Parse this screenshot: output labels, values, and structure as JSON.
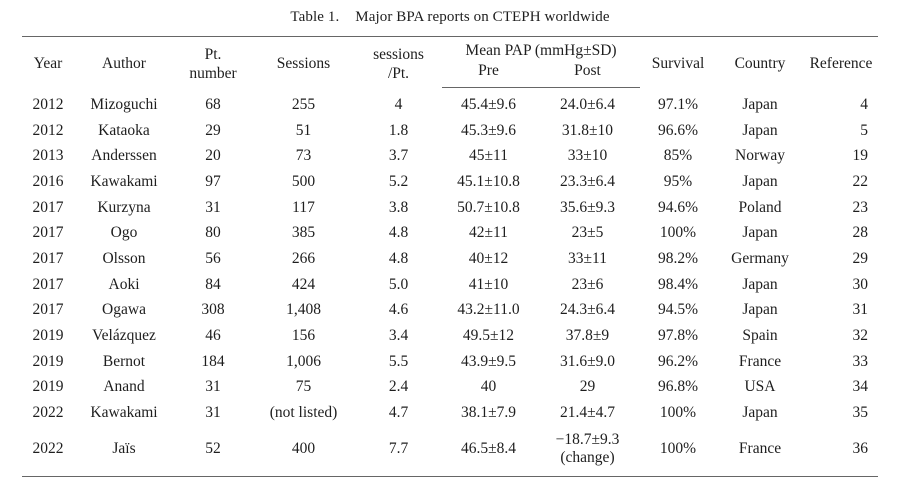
{
  "caption": {
    "label": "Table 1.",
    "title": "Major BPA reports on CTEPH worldwide"
  },
  "headers": {
    "year": "Year",
    "author": "Author",
    "pt_line1": "Pt.",
    "pt_line2": "number",
    "sessions": "Sessions",
    "spp_line1": "sessions",
    "spp_line2": "/Pt.",
    "mean_pap": "Mean PAP (mmHg±SD)",
    "pre": "Pre",
    "post": "Post",
    "survival": "Survival",
    "country": "Country",
    "reference": "Reference"
  },
  "rows": [
    {
      "year": "2012",
      "author": "Mizoguchi",
      "pt": "68",
      "sessions": "255",
      "spp": "4",
      "pre": "45.4±9.6",
      "post": "24.0±6.4",
      "survival": "97.1%",
      "country": "Japan",
      "ref": "4"
    },
    {
      "year": "2012",
      "author": "Kataoka",
      "pt": "29",
      "sessions": "51",
      "spp": "1.8",
      "pre": "45.3±9.6",
      "post": "31.8±10",
      "survival": "96.6%",
      "country": "Japan",
      "ref": "5"
    },
    {
      "year": "2013",
      "author": "Anderssen",
      "pt": "20",
      "sessions": "73",
      "spp": "3.7",
      "pre": "45±11",
      "post": "33±10",
      "survival": "85%",
      "country": "Norway",
      "ref": "19"
    },
    {
      "year": "2016",
      "author": "Kawakami",
      "pt": "97",
      "sessions": "500",
      "spp": "5.2",
      "pre": "45.1±10.8",
      "post": "23.3±6.4",
      "survival": "95%",
      "country": "Japan",
      "ref": "22"
    },
    {
      "year": "2017",
      "author": "Kurzyna",
      "pt": "31",
      "sessions": "117",
      "spp": "3.8",
      "pre": "50.7±10.8",
      "post": "35.6±9.3",
      "survival": "94.6%",
      "country": "Poland",
      "ref": "23"
    },
    {
      "year": "2017",
      "author": "Ogo",
      "pt": "80",
      "sessions": "385",
      "spp": "4.8",
      "pre": "42±11",
      "post": "23±5",
      "survival": "100%",
      "country": "Japan",
      "ref": "28"
    },
    {
      "year": "2017",
      "author": "Olsson",
      "pt": "56",
      "sessions": "266",
      "spp": "4.8",
      "pre": "40±12",
      "post": "33±11",
      "survival": "98.2%",
      "country": "Germany",
      "ref": "29"
    },
    {
      "year": "2017",
      "author": "Aoki",
      "pt": "84",
      "sessions": "424",
      "spp": "5.0",
      "pre": "41±10",
      "post": "23±6",
      "survival": "98.4%",
      "country": "Japan",
      "ref": "30"
    },
    {
      "year": "2017",
      "author": "Ogawa",
      "pt": "308",
      "sessions": "1,408",
      "spp": "4.6",
      "pre": "43.2±11.0",
      "post": "24.3±6.4",
      "survival": "94.5%",
      "country": "Japan",
      "ref": "31"
    },
    {
      "year": "2019",
      "author": "Velázquez",
      "pt": "46",
      "sessions": "156",
      "spp": "3.4",
      "pre": "49.5±12",
      "post": "37.8±9",
      "survival": "97.8%",
      "country": "Spain",
      "ref": "32"
    },
    {
      "year": "2019",
      "author": "Bernot",
      "pt": "184",
      "sessions": "1,006",
      "spp": "5.5",
      "pre": "43.9±9.5",
      "post": "31.6±9.0",
      "survival": "96.2%",
      "country": "France",
      "ref": "33"
    },
    {
      "year": "2019",
      "author": "Anand",
      "pt": "31",
      "sessions": "75",
      "spp": "2.4",
      "pre": "40",
      "post": "29",
      "survival": "96.8%",
      "country": "USA",
      "ref": "34"
    },
    {
      "year": "2022",
      "author": "Kawakami",
      "pt": "31",
      "sessions": "(not listed)",
      "spp": "4.7",
      "pre": "38.1±7.9",
      "post": "21.4±4.7",
      "survival": "100%",
      "country": "Japan",
      "ref": "35"
    }
  ],
  "last_row": {
    "year": "2022",
    "author": "Jaïs",
    "pt": "52",
    "sessions": "400",
    "spp": "7.7",
    "pre": "46.5±8.4",
    "post_line1": "−18.7±9.3",
    "post_line2": "(change)",
    "survival": "100%",
    "country": "France",
    "ref": "36"
  }
}
